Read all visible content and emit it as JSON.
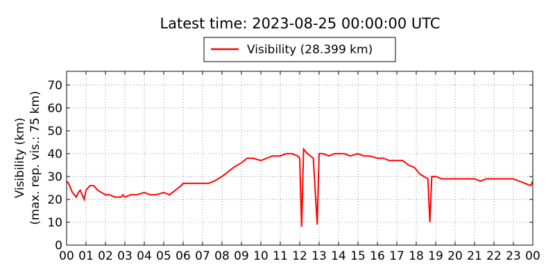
{
  "chart_data": {
    "type": "line",
    "title": "Latest time: 2023-08-25 00:00:00 UTC",
    "xlabel": "",
    "ylabel_lines": [
      "Visibility (km)",
      "(max. rep. vis.: 75 km)"
    ],
    "xlim": [
      0,
      24
    ],
    "ylim": [
      0,
      76
    ],
    "x_ticks": [
      0,
      1,
      2,
      3,
      4,
      5,
      6,
      7,
      8,
      9,
      10,
      11,
      12,
      13,
      14,
      15,
      16,
      17,
      18,
      19,
      20,
      21,
      22,
      23,
      24
    ],
    "x_tick_labels": [
      "00",
      "01",
      "02",
      "03",
      "04",
      "05",
      "06",
      "07",
      "08",
      "09",
      "10",
      "11",
      "12",
      "13",
      "14",
      "15",
      "16",
      "17",
      "18",
      "19",
      "20",
      "21",
      "22",
      "23",
      "00"
    ],
    "y_ticks": [
      0,
      10,
      20,
      30,
      40,
      50,
      60,
      70
    ],
    "y_tick_labels": [
      "0",
      "10",
      "20",
      "30",
      "40",
      "50",
      "60",
      "70"
    ],
    "grid": true,
    "legend": {
      "placement": "top-center",
      "entries": [
        "Visibility (28.399 km)"
      ]
    },
    "series": [
      {
        "name": "Visibility (28.399 km)",
        "color": "#ff0000",
        "x": [
          0,
          0.1,
          0.2,
          0.3,
          0.4,
          0.5,
          0.6,
          0.7,
          0.8,
          0.9,
          1.0,
          1.2,
          1.4,
          1.6,
          1.8,
          2.0,
          2.2,
          2.5,
          2.8,
          2.9,
          3.0,
          3.3,
          3.6,
          4.0,
          4.3,
          4.6,
          5.0,
          5.3,
          5.6,
          5.9,
          6.0,
          6.3,
          6.6,
          7.0,
          7.3,
          7.6,
          8.0,
          8.3,
          8.6,
          9.0,
          9.3,
          9.6,
          10.0,
          10.3,
          10.6,
          11.0,
          11.3,
          11.6,
          11.9,
          12.0,
          12.1,
          12.2,
          12.4,
          12.7,
          12.9,
          13.0,
          13.2,
          13.5,
          13.8,
          14.0,
          14.3,
          14.6,
          15.0,
          15.3,
          15.6,
          16.0,
          16.3,
          16.6,
          17.0,
          17.3,
          17.6,
          17.9,
          18.0,
          18.2,
          18.4,
          18.6,
          18.7,
          18.8,
          19.0,
          19.3,
          19.6,
          20.0,
          20.3,
          20.6,
          21.0,
          21.3,
          21.6,
          22.0,
          22.3,
          22.6,
          23.0,
          23.3,
          23.6,
          23.9,
          24.0
        ],
        "y": [
          28,
          27,
          25,
          23,
          22,
          21,
          23,
          24,
          22,
          20,
          24,
          26,
          26,
          24,
          23,
          22,
          22,
          21,
          21,
          22,
          21,
          22,
          22,
          23,
          22,
          22,
          23,
          22,
          24,
          26,
          27,
          27,
          27,
          27,
          27,
          28,
          30,
          32,
          34,
          36,
          38,
          38,
          37,
          38,
          39,
          39,
          40,
          40,
          39,
          38,
          8,
          42,
          40,
          38,
          9,
          40,
          40,
          39,
          40,
          40,
          40,
          39,
          40,
          39,
          39,
          38,
          38,
          37,
          37,
          37,
          35,
          34,
          33,
          31,
          30,
          29,
          10,
          30,
          30,
          29,
          29,
          29,
          29,
          29,
          29,
          28,
          29,
          29,
          29,
          29,
          29,
          28,
          27,
          26,
          28
        ]
      }
    ]
  }
}
